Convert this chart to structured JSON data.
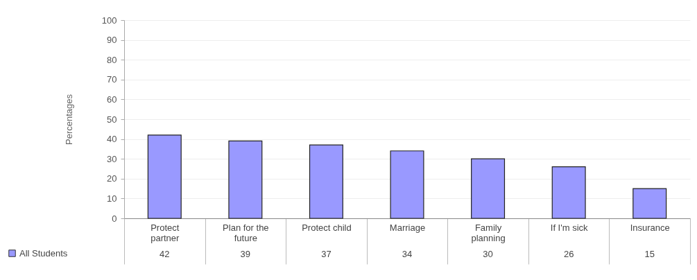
{
  "chart_data": {
    "type": "bar",
    "ylabel": "Percentages",
    "categories": [
      "Protect partner",
      "Plan for the future",
      "Protect child",
      "Marriage",
      "Family planning",
      "If I'm sick",
      "Insurance"
    ],
    "series": [
      {
        "name": "All Students",
        "color": "#9999ff",
        "values": [
          42,
          39,
          37,
          34,
          30,
          26,
          15
        ]
      }
    ],
    "ylim": [
      0,
      100
    ],
    "yticks": [
      0,
      10,
      20,
      30,
      40,
      50,
      60,
      70,
      80,
      90,
      100
    ],
    "grid": "y",
    "legend": "bottom left",
    "data_labels": true
  }
}
